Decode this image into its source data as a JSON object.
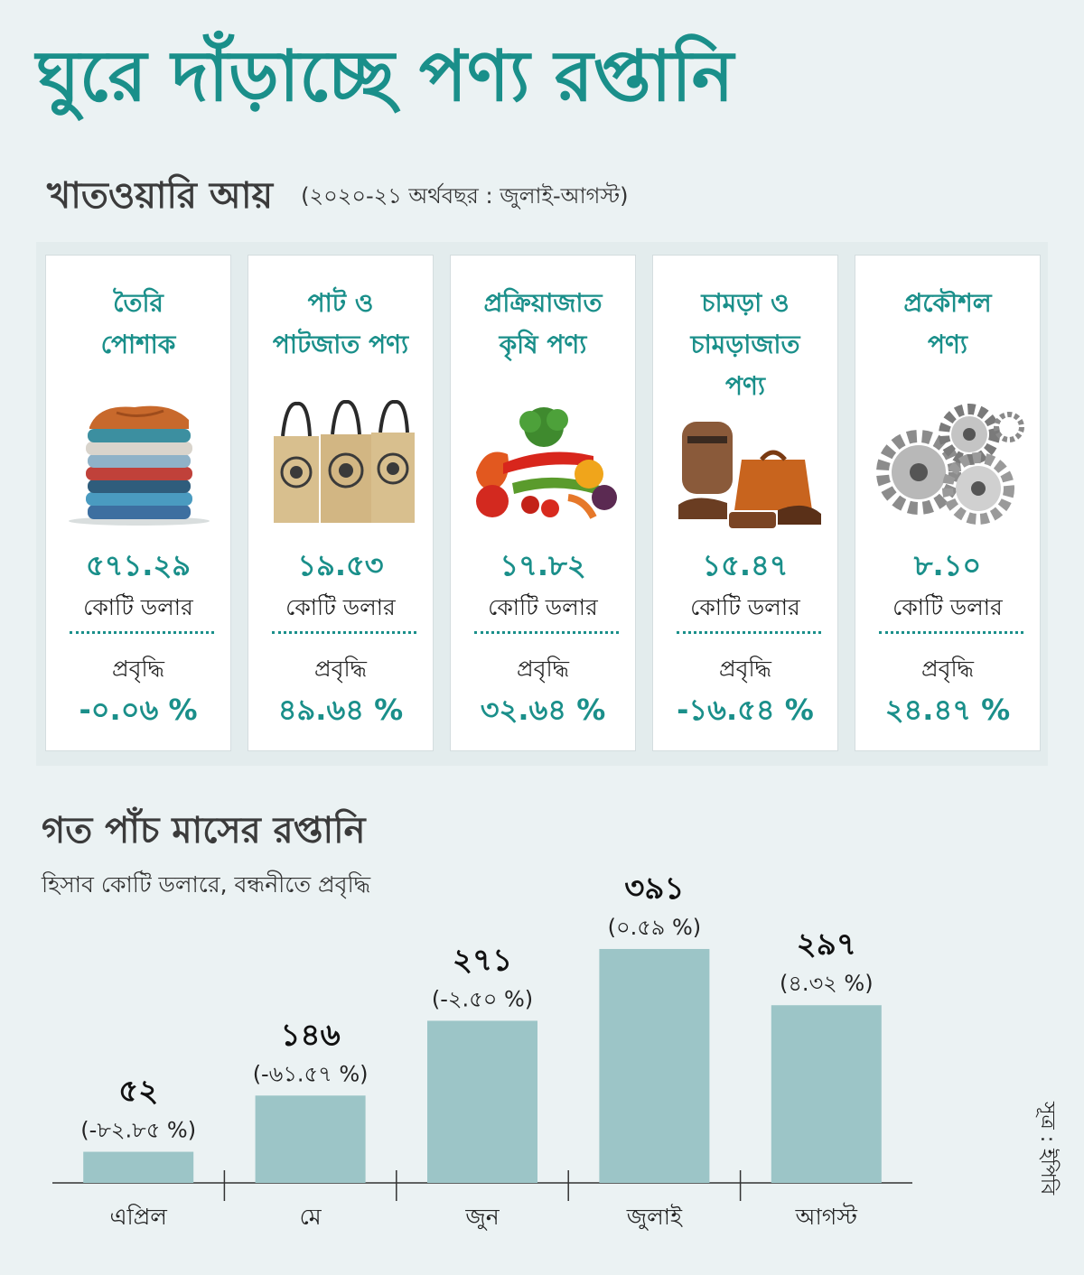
{
  "title": "ঘুরে দাঁড়াচ্ছে পণ্য রপ্তানি",
  "sector_section": {
    "title": "খাতওয়ারি আয়",
    "note": "(২০২০-২১ অর্থবছর : জুলাই-আগস্ট)",
    "unit": "কোটি ডলার",
    "growth_label": "প্রবৃদ্ধি",
    "sectors": [
      {
        "name_line1": "তৈরি",
        "name_line2": "পোশাক",
        "name_line3": "",
        "icon": "folded-clothes",
        "value": "৫৭১.২৯",
        "growth": "-০.০৬ %"
      },
      {
        "name_line1": "পাট ও",
        "name_line2": "পাটজাত পণ্য",
        "name_line3": "",
        "icon": "jute-bags",
        "value": "১৯.৫৩",
        "growth": "৪৯.৬৪ %"
      },
      {
        "name_line1": "প্রক্রিয়াজাত",
        "name_line2": "কৃষি পণ্য",
        "name_line3": "",
        "icon": "vegetables",
        "value": "১৭.৮২",
        "growth": "৩২.৬৪ %"
      },
      {
        "name_line1": "চামড়া ও",
        "name_line2": "চামড়াজাত",
        "name_line3": "পণ্য",
        "icon": "leather-goods",
        "value": "১৫.৪৭",
        "growth": "-১৬.৫৪ %"
      },
      {
        "name_line1": "প্রকৌশল",
        "name_line2": "পণ্য",
        "name_line3": "",
        "icon": "gears",
        "value": "৮.১০",
        "growth": "২৪.৪৭ %"
      }
    ]
  },
  "monthly_section": {
    "title": "গত পাঁচ মাসের রপ্তানি",
    "note": "হিসাব কোটি ডলারে, বন্ধনীতে প্রবৃদ্ধি"
  },
  "chart_data": {
    "type": "bar",
    "categories": [
      "এপ্রিল",
      "মে",
      "জুন",
      "জুলাই",
      "আগস্ট"
    ],
    "values": [
      52,
      146,
      271,
      391,
      297
    ],
    "value_labels": [
      "৫২",
      "১৪৬",
      "২৭১",
      "৩৯১",
      "২৯৭"
    ],
    "growth_labels": [
      "(-৮২.৮৫ %)",
      "(-৬১.৫৭ %)",
      "(-২.৫০ %)",
      "(০.৫৯ %)",
      "(৪.৩২ %)"
    ],
    "ylim": [
      0,
      400
    ],
    "bar_color": "#9cc5c7",
    "grid": false
  },
  "source": "সূত্র : ইপিবি",
  "colors": {
    "accent": "#1a8f8a",
    "background": "#ebf2f3",
    "bar": "#9cc5c7"
  }
}
